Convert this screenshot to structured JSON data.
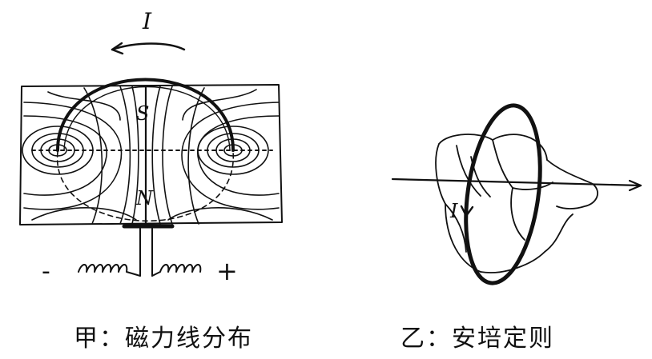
{
  "panel_left": {
    "current_label": "I",
    "pole_top": "S",
    "pole_bottom": "N",
    "minus_sign": "-",
    "plus_sign": "+",
    "caption": "甲：磁力线分布"
  },
  "panel_right": {
    "current_label": "I",
    "caption": "乙：安培定则"
  }
}
